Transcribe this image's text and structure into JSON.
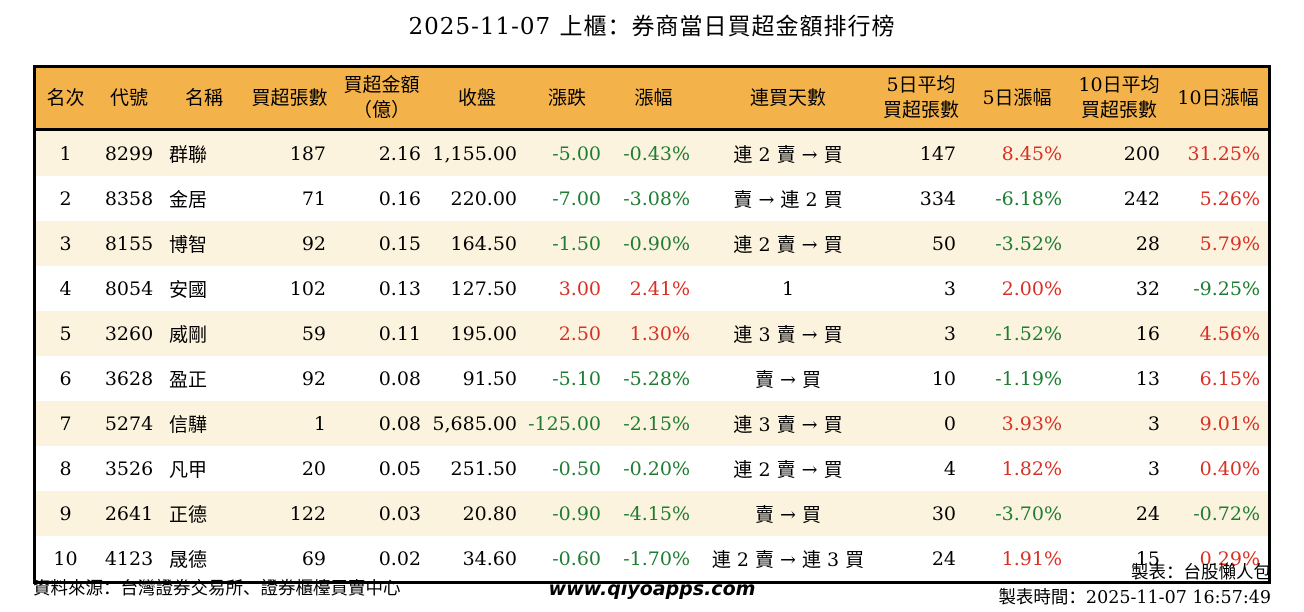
{
  "title": "2025-11-07 上櫃：券商當日買超金額排行榜",
  "colors": {
    "up_red": "#D93025",
    "down_green": "#1E7D32",
    "header_bg": "#F4B24A",
    "row_alt_bg": "#FCF3DE",
    "border": "#000000"
  },
  "chart_data": {
    "type": "table",
    "title": "2025-11-07 上櫃：券商當日買超金額排行榜",
    "columns": [
      "名次",
      "代號",
      "名稱",
      "買超張數",
      "買超金額\n（億）",
      "收盤",
      "漲跌",
      "漲幅",
      "連買天數",
      "5日平均\n買超張數",
      "5日漲幅",
      "10日平均\n買超張數",
      "10日漲幅"
    ],
    "col_align": [
      "center",
      "center",
      "left",
      "right",
      "right",
      "right",
      "right",
      "right",
      "center",
      "right",
      "right",
      "right",
      "right"
    ],
    "signed_color_columns": [
      6,
      7,
      10,
      12
    ],
    "rows": [
      [
        "1",
        "8299",
        "群聯",
        "187",
        "2.16",
        "1,155.00",
        "-5.00",
        "-0.43%",
        "連 2 賣 → 買",
        "147",
        "8.45%",
        "200",
        "31.25%"
      ],
      [
        "2",
        "8358",
        "金居",
        "71",
        "0.16",
        "220.00",
        "-7.00",
        "-3.08%",
        "賣 → 連 2 買",
        "334",
        "-6.18%",
        "242",
        "5.26%"
      ],
      [
        "3",
        "8155",
        "博智",
        "92",
        "0.15",
        "164.50",
        "-1.50",
        "-0.90%",
        "連 2 賣 → 買",
        "50",
        "-3.52%",
        "28",
        "5.79%"
      ],
      [
        "4",
        "8054",
        "安國",
        "102",
        "0.13",
        "127.50",
        "3.00",
        "2.41%",
        "1",
        "3",
        "2.00%",
        "32",
        "-9.25%"
      ],
      [
        "5",
        "3260",
        "威剛",
        "59",
        "0.11",
        "195.00",
        "2.50",
        "1.30%",
        "連 3 賣 → 買",
        "3",
        "-1.52%",
        "16",
        "4.56%"
      ],
      [
        "6",
        "3628",
        "盈正",
        "92",
        "0.08",
        "91.50",
        "-5.10",
        "-5.28%",
        "賣 → 買",
        "10",
        "-1.19%",
        "13",
        "6.15%"
      ],
      [
        "7",
        "5274",
        "信驊",
        "1",
        "0.08",
        "5,685.00",
        "-125.00",
        "-2.15%",
        "連 3 賣 → 買",
        "0",
        "3.93%",
        "3",
        "9.01%"
      ],
      [
        "8",
        "3526",
        "凡甲",
        "20",
        "0.05",
        "251.50",
        "-0.50",
        "-0.20%",
        "連 2 賣 → 買",
        "4",
        "1.82%",
        "3",
        "0.40%"
      ],
      [
        "9",
        "2641",
        "正德",
        "122",
        "0.03",
        "20.80",
        "-0.90",
        "-4.15%",
        "賣 → 買",
        "30",
        "-3.70%",
        "24",
        "-0.72%"
      ],
      [
        "10",
        "4123",
        "晟德",
        "69",
        "0.02",
        "34.60",
        "-0.60",
        "-1.70%",
        "連 2 賣 → 連 3 買",
        "24",
        "1.91%",
        "15",
        "0.29%"
      ]
    ]
  },
  "footer": {
    "source": "資料來源：台灣證券交易所、證券櫃檯買賣中心",
    "website": "www.qiyoapps.com",
    "maker": "製表：台股懶人包",
    "made_time": "製表時間：2025-11-07 16:57:49"
  }
}
